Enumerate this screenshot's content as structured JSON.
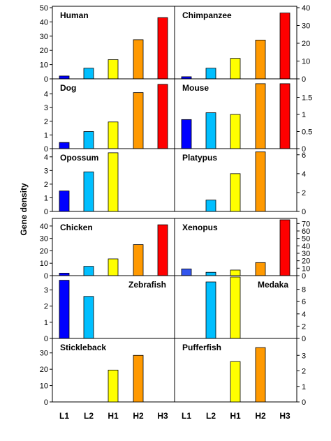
{
  "chart_data": {
    "type": "bar",
    "ylabel": "Gene density",
    "categories": [
      "L1",
      "L2",
      "H1",
      "H2",
      "H3"
    ],
    "category_colors": {
      "L1": "#0000ff",
      "L2": "#00bfff",
      "H1": "#ffff00",
      "H2": "#ff9900",
      "H3": "#ff0000"
    },
    "panels": [
      {
        "name": "Human",
        "column": "left",
        "row": 0,
        "ylim": [
          0,
          50
        ],
        "yticks": [
          0,
          10,
          20,
          30,
          40,
          50
        ],
        "values": [
          2.0,
          7.5,
          13.5,
          27.5,
          43.0
        ]
      },
      {
        "name": "Chimpanzee",
        "column": "right",
        "row": 0,
        "ylim": [
          0,
          40
        ],
        "yticks": [
          0,
          10,
          20,
          30,
          40
        ],
        "values": [
          1.2,
          6.0,
          11.5,
          21.8,
          37.0
        ]
      },
      {
        "name": "Dog",
        "column": "left",
        "row": 1,
        "ylim": [
          0,
          5
        ],
        "yticks": [
          0,
          1,
          2,
          3,
          4
        ],
        "values": [
          0.45,
          1.25,
          1.95,
          4.1,
          4.7
        ]
      },
      {
        "name": "Mouse",
        "column": "right",
        "row": 1,
        "ylim": [
          0,
          2
        ],
        "yticks": [
          0,
          0.5,
          1,
          1.5
        ],
        "values": [
          0.85,
          1.05,
          1.0,
          1.9,
          1.9
        ]
      },
      {
        "name": "Opossum",
        "column": "left",
        "row": 2,
        "ylim": [
          0,
          4.5
        ],
        "yticks": [
          0,
          1,
          2,
          3,
          4
        ],
        "values": [
          1.5,
          2.9,
          4.3,
          null,
          null
        ]
      },
      {
        "name": "Platypus",
        "column": "right",
        "row": 2,
        "ylim": [
          0,
          6.5
        ],
        "yticks": [
          0,
          2,
          4,
          6
        ],
        "values": [
          null,
          1.2,
          4.0,
          6.3,
          null
        ]
      },
      {
        "name": "Chicken",
        "column": "left",
        "row": 3,
        "ylim": [
          0,
          45
        ],
        "yticks": [
          0,
          10,
          20,
          30,
          40
        ],
        "values": [
          2.0,
          7.5,
          13.5,
          25.0,
          41.0
        ]
      },
      {
        "name": "Xenopus",
        "column": "right",
        "row": 3,
        "ylim": [
          0,
          75
        ],
        "yticks": [
          0,
          10,
          20,
          30,
          40,
          50,
          60,
          70
        ],
        "values": [
          9.0,
          4.5,
          7.5,
          17.5,
          75.0
        ],
        "colors": [
          "#3355ee",
          null,
          null,
          null,
          null
        ]
      },
      {
        "name": "Zebrafish",
        "column": "left",
        "row": 4,
        "ylim": [
          0,
          3.8
        ],
        "yticks": [
          0,
          1,
          2,
          3
        ],
        "values": [
          3.6,
          2.6,
          null,
          null,
          null
        ],
        "label_side": "right"
      },
      {
        "name": "Medaka",
        "column": "right",
        "row": 4,
        "ylim": [
          0,
          10
        ],
        "yticks": [
          0,
          2,
          4,
          6,
          8
        ],
        "values": [
          null,
          9.2,
          10.0,
          null,
          null
        ],
        "label_side": "right"
      },
      {
        "name": "Stickleback",
        "column": "left",
        "row": 5,
        "ylim": [
          0,
          38
        ],
        "yticks": [
          0,
          10,
          20,
          30
        ],
        "values": [
          null,
          null,
          19.5,
          28.5,
          null
        ]
      },
      {
        "name": "Pufferfish",
        "column": "right",
        "row": 5,
        "ylim": [
          0,
          4
        ],
        "yticks": [
          0,
          1,
          2,
          3
        ],
        "values": [
          null,
          null,
          2.6,
          3.5,
          null
        ]
      }
    ],
    "grid": false,
    "legend": "none"
  }
}
